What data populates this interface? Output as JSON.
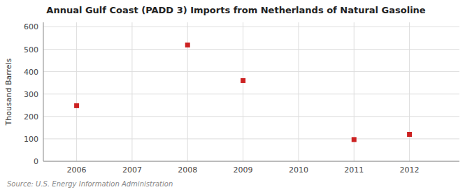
{
  "chart_data": {
    "type": "scatter",
    "title": "Annual Gulf Coast (PADD 3) Imports from Netherlands of Natural Gasoline",
    "ylabel": "Thousand Barrels",
    "annotation": "Source: U.S. Energy Information Administration",
    "x": [
      2006,
      2008,
      2009,
      2011,
      2012
    ],
    "values": [
      248,
      519,
      360,
      97,
      120
    ],
    "color": "#cc2222",
    "marker": "square",
    "xlim": [
      2005.4,
      2012.9
    ],
    "ylim": [
      0,
      620
    ],
    "xticks": [
      2006,
      2007,
      2008,
      2009,
      2010,
      2011,
      2012
    ],
    "yticks": [
      0,
      100,
      200,
      300,
      400,
      500,
      600
    ],
    "grid": true
  }
}
